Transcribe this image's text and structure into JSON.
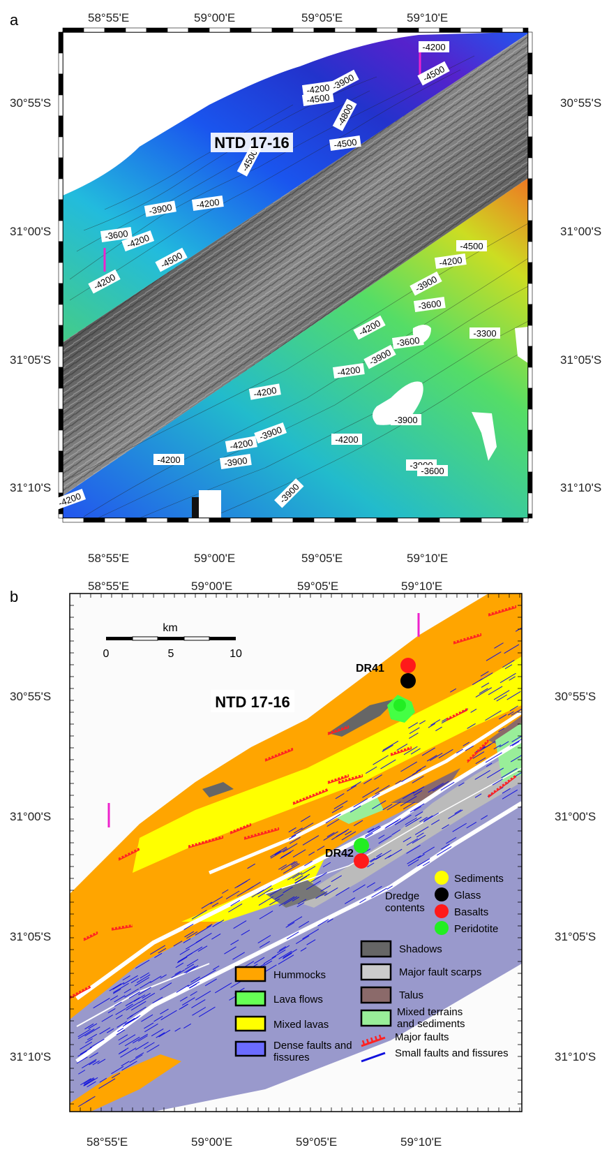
{
  "panel_a": {
    "label": "a",
    "title": "NTD 17-16",
    "lon_ticks": [
      "58°55'E",
      "59°00'E",
      "59°05'E",
      "59°10'E"
    ],
    "lat_ticks": [
      "30°55'S",
      "31°00'S",
      "31°05'S",
      "31°10'S"
    ],
    "contour_labels": [
      "-4200",
      "-4500",
      "-3900",
      "-4200",
      "-4500",
      "-4800",
      "-4500",
      "-4500",
      "-3900",
      "-4200",
      "-3600",
      "-4200",
      "-4500",
      "-4200",
      "-4500",
      "-4200",
      "-3900",
      "-3600",
      "-4200",
      "-3600",
      "-3300",
      "-3900",
      "-4200",
      "-4200",
      "-3900",
      "-4200",
      "-4200",
      "-3900",
      "-4200",
      "-3900",
      "-3900",
      "-3900",
      "-3600",
      "-4200"
    ]
  },
  "panel_b": {
    "label": "b",
    "title": "NTD 17-16",
    "lon_ticks": [
      "58°55'E",
      "59°00'E",
      "59°05'E",
      "59°10'E"
    ],
    "lat_ticks": [
      "30°55'S",
      "31°00'S",
      "31°05'S",
      "31°10'S"
    ],
    "scale_bar": {
      "unit": "km",
      "labels": [
        "0",
        "5",
        "10"
      ]
    },
    "dredges": [
      {
        "name": "DR41",
        "samples": [
          "Basalts",
          "Glass",
          "Peridotite"
        ]
      },
      {
        "name": "DR42",
        "samples": [
          "Peridotite",
          "Basalts"
        ]
      }
    ],
    "dredge_legend": {
      "title_line1": "Dredge",
      "title_line2": "contents",
      "items": [
        {
          "label": "Sediments",
          "color": "#ffff00"
        },
        {
          "label": "Glass",
          "color": "#000000"
        },
        {
          "label": "Basalts",
          "color": "#ff1a1a"
        },
        {
          "label": "Peridotite",
          "color": "#22ee22"
        }
      ]
    },
    "unit_legend_left": [
      {
        "label": "Hummocks",
        "color": "#ffa500"
      },
      {
        "label": "Lava flows",
        "color": "#66ff55"
      },
      {
        "label": "Mixed lavas",
        "color": "#ffff00"
      },
      {
        "label_line1": "Dense faults and",
        "label_line2": "fissures",
        "color": "#6b6bff"
      }
    ],
    "unit_legend_right": [
      {
        "label": "Shadows",
        "color": "#666666"
      },
      {
        "label": "Major fault scarps",
        "color": "#cccccc"
      },
      {
        "label": "Talus",
        "color": "#8b6a6a"
      },
      {
        "label_line1": "Mixed terrains",
        "label_line2": "and sediments",
        "color": "#99ee99"
      }
    ],
    "line_legend": [
      {
        "label": "Major faults",
        "color": "#ff2222"
      },
      {
        "label": "Small faults and fissures",
        "color": "#1111dd"
      }
    ]
  }
}
